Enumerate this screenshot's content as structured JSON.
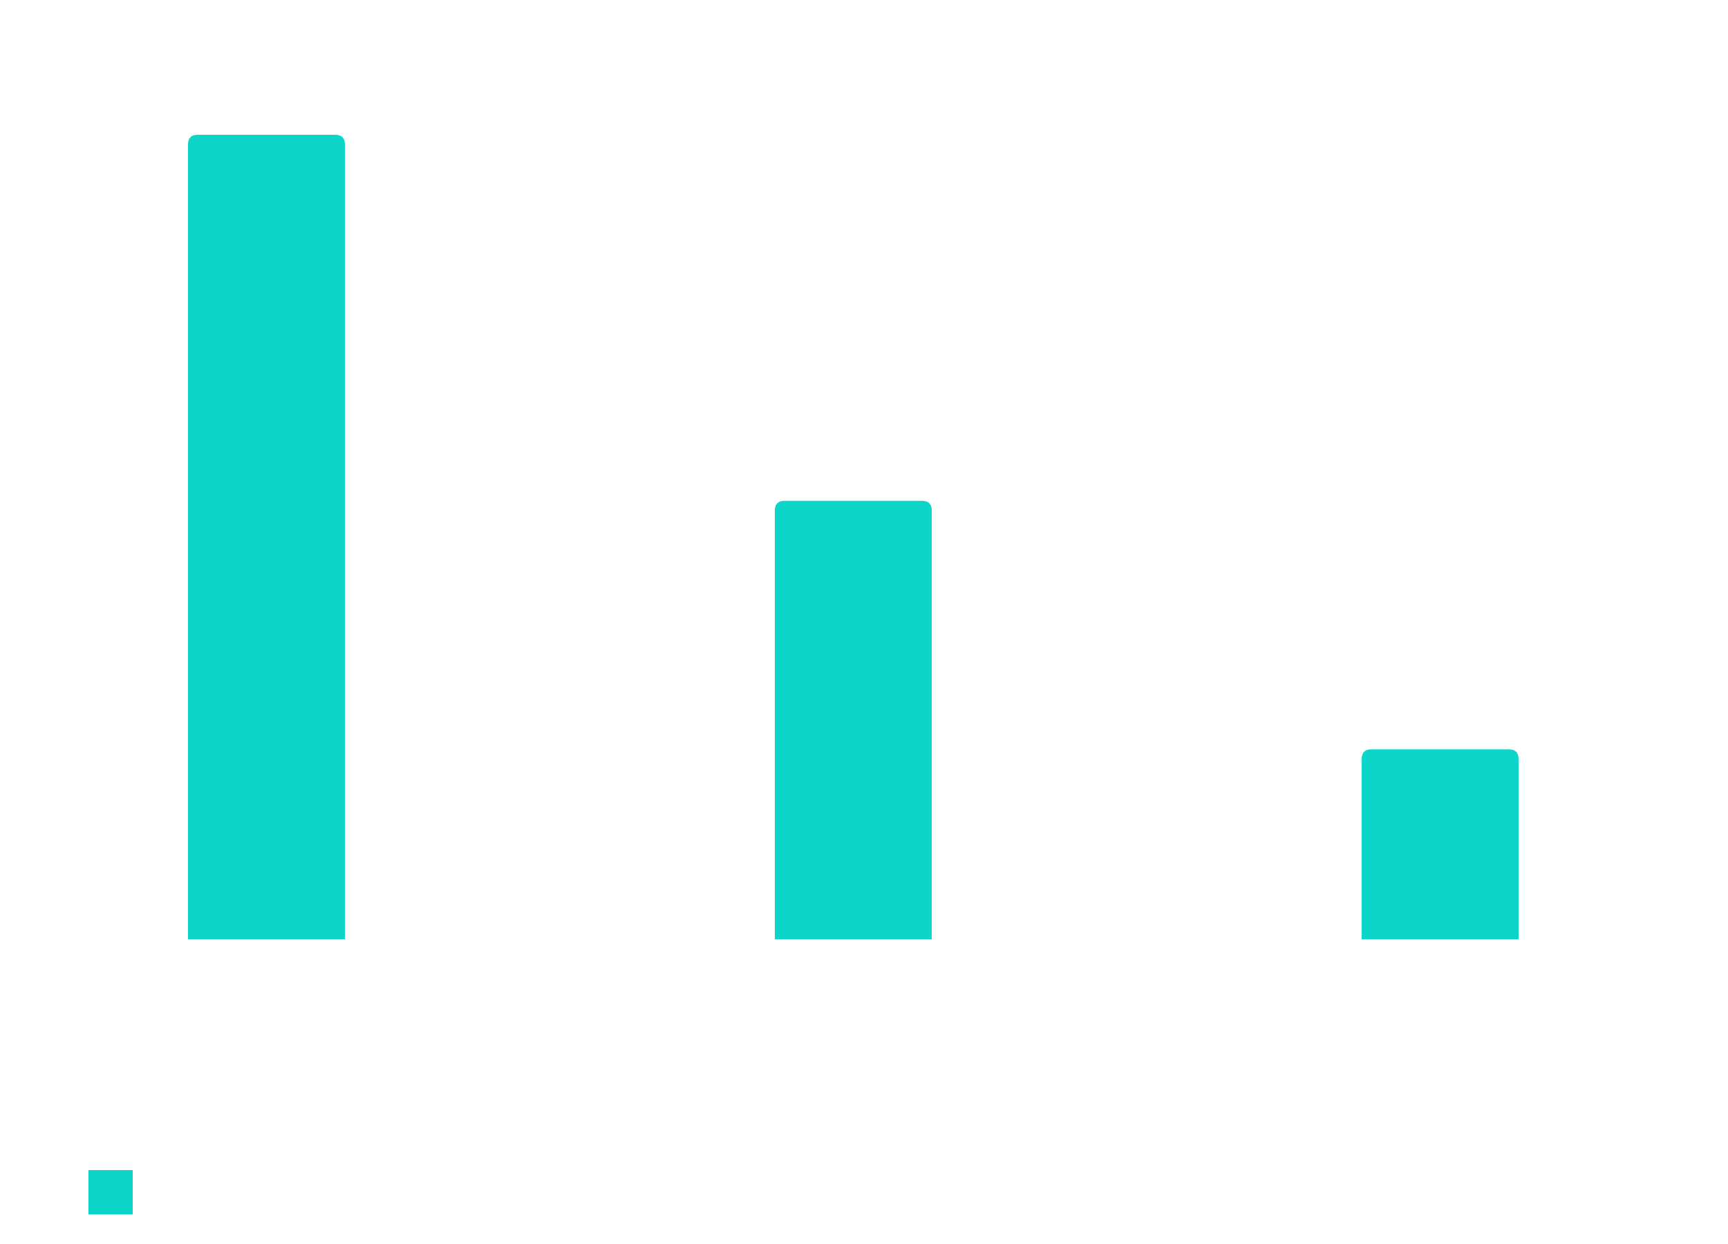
{
  "chart_data": {
    "type": "bar",
    "title": "",
    "xlabel": "",
    "ylabel": "",
    "categories": [
      "",
      "",
      ""
    ],
    "values": [
      100,
      54.5,
      23.6
    ],
    "ylim": [
      0,
      100
    ],
    "grid": false,
    "legend": {
      "placement": "bottom-left",
      "entries": [
        {
          "label": "",
          "color": "#0dd6c9"
        }
      ]
    },
    "colors": {
      "bar": "#0dd6c9",
      "background": "#ffffff"
    }
  }
}
